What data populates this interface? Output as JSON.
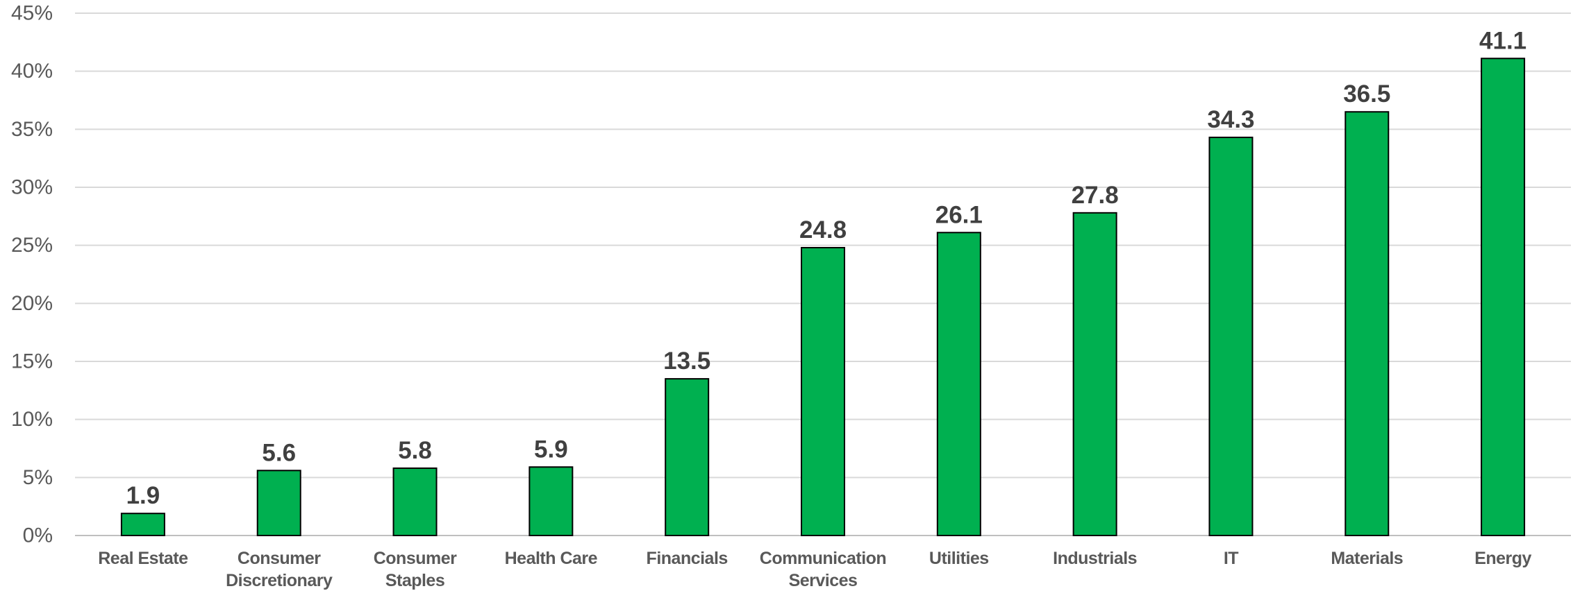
{
  "chart_data": {
    "type": "bar",
    "title": "",
    "xlabel": "",
    "ylabel": "",
    "categories": [
      [
        "Real Estate"
      ],
      [
        "Consumer",
        "Discretionary"
      ],
      [
        "Consumer",
        "Staples"
      ],
      [
        "Health Care"
      ],
      [
        "Financials"
      ],
      [
        "Communication",
        "Services"
      ],
      [
        "Utilities"
      ],
      [
        "Industrials"
      ],
      [
        "IT"
      ],
      [
        "Materials"
      ],
      [
        "Energy"
      ]
    ],
    "values": [
      1.9,
      5.6,
      5.8,
      5.9,
      13.5,
      24.8,
      26.1,
      27.8,
      34.3,
      36.5,
      41.1
    ],
    "data_labels": [
      "1.9",
      "5.6",
      "5.8",
      "5.9",
      "13.5",
      "24.8",
      "26.1",
      "27.8",
      "34.3",
      "36.5",
      "41.1"
    ],
    "ylim": [
      0,
      45
    ],
    "yticks": [
      0,
      5,
      10,
      15,
      20,
      25,
      30,
      35,
      40,
      45
    ],
    "ytick_labels": [
      "0%",
      "5%",
      "10%",
      "15%",
      "20%",
      "25%",
      "30%",
      "35%",
      "40%",
      "45%"
    ],
    "grid": true,
    "legend": "none",
    "bar_color": "#00b050",
    "bar_edge_color": "#000000"
  }
}
